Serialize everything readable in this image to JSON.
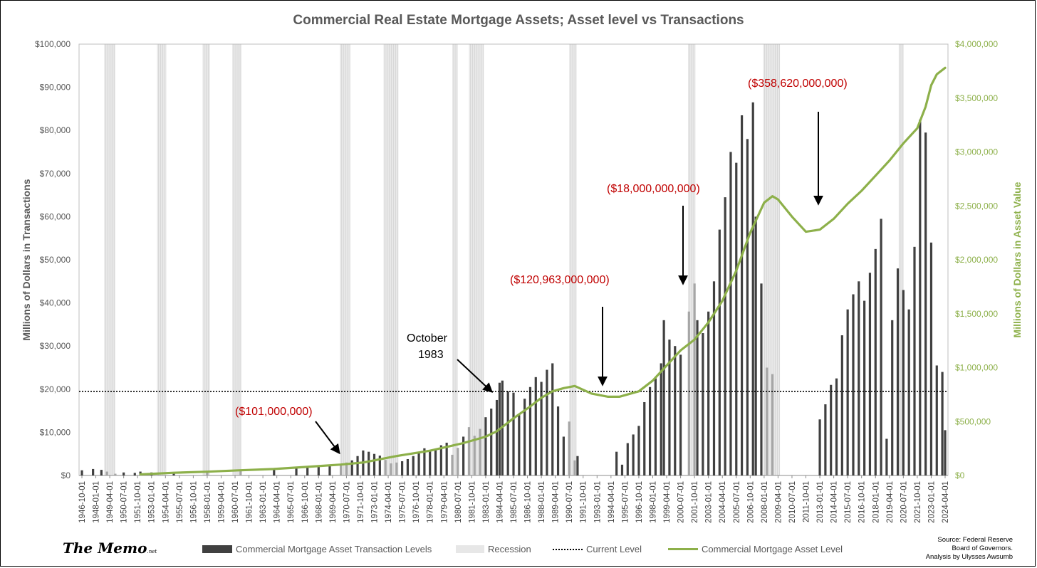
{
  "chart_data": {
    "type": "bar",
    "title": "Commercial Real Estate Mortgage Assets; Asset level vs Transactions",
    "ylabel_left": "Millions of Dollars in Transactions",
    "ylabel_right": "Millions of Dollars in Asset Value",
    "ylim_left": [
      0,
      100000
    ],
    "ylim_right": [
      0,
      4000000
    ],
    "yticks_left": [
      "$0",
      "$10,000",
      "$20,000",
      "$30,000",
      "$40,000",
      "$50,000",
      "$60,000",
      "$70,000",
      "$80,000",
      "$90,000",
      "$100,000"
    ],
    "yticks_right": [
      "$0",
      "$500,000",
      "$1,000,000",
      "$1,500,000",
      "$2,000,000",
      "$2,500,000",
      "$3,000,000",
      "$3,500,000",
      "$4,000,000"
    ],
    "x_start": "1946-10-01",
    "x_end": "2024-04-01",
    "xticks": [
      "1946-10-01",
      "1948-01-01",
      "1949-04-01",
      "1950-07-01",
      "1951-10-01",
      "1953-01-01",
      "1954-04-01",
      "1955-07-01",
      "1956-10-01",
      "1958-01-01",
      "1959-04-01",
      "1960-07-01",
      "1961-10-01",
      "1963-01-01",
      "1964-04-01",
      "1965-07-01",
      "1966-10-01",
      "1968-01-01",
      "1969-04-01",
      "1970-07-01",
      "1971-10-01",
      "1973-01-01",
      "1974-04-01",
      "1975-07-01",
      "1976-10-01",
      "1978-01-01",
      "1979-04-01",
      "1980-07-01",
      "1981-10-01",
      "1983-01-01",
      "1984-04-01",
      "1985-07-01",
      "1986-10-01",
      "1988-01-01",
      "1989-04-01",
      "1990-07-01",
      "1991-10-01",
      "1993-01-01",
      "1994-04-01",
      "1995-07-01",
      "1996-10-01",
      "1998-01-01",
      "1999-04-01",
      "2000-07-01",
      "2001-10-01",
      "2003-01-01",
      "2004-04-01",
      "2005-07-01",
      "2006-10-01",
      "2008-01-01",
      "2009-04-01",
      "2010-07-01",
      "2011-10-01",
      "2013-01-01",
      "2014-04-01",
      "2015-07-01",
      "2016-10-01",
      "2018-01-01",
      "2019-04-01",
      "2020-07-01",
      "2021-10-01",
      "2023-01-01",
      "2024-04-01"
    ],
    "recessions": [
      [
        "1948-10-01",
        "1949-10-01"
      ],
      [
        "1953-07-01",
        "1954-05-01"
      ],
      [
        "1957-08-01",
        "1958-04-01"
      ],
      [
        "1960-04-01",
        "1961-02-01"
      ],
      [
        "1969-12-01",
        "1970-11-01"
      ],
      [
        "1973-11-01",
        "1975-03-01"
      ],
      [
        "1980-01-01",
        "1980-07-01"
      ],
      [
        "1981-07-01",
        "1982-11-01"
      ],
      [
        "1990-07-01",
        "1991-03-01"
      ],
      [
        "2001-03-01",
        "2001-11-01"
      ],
      [
        "2007-12-01",
        "2009-06-01"
      ],
      [
        "2020-02-01",
        "2020-04-01"
      ]
    ],
    "current_level": 19500,
    "series": [
      {
        "name": "Commercial Mortgage Asset Transaction Levels",
        "type": "bar",
        "color": "#404040",
        "recession_color": "#a6a6a6",
        "x": [
          "1946-10-01",
          "1947-10-01",
          "1948-07-01",
          "1949-01-01",
          "1949-10-01",
          "1950-07-01",
          "1951-07-01",
          "1952-01-01",
          "1953-01-01",
          "1955-01-01",
          "1958-01-01",
          "1961-01-01",
          "1964-01-01",
          "1966-01-01",
          "1967-01-01",
          "1968-01-01",
          "1969-01-01",
          "1970-01-01",
          "1970-07-01",
          "1971-01-01",
          "1971-07-01",
          "1972-01-01",
          "1972-07-01",
          "1973-01-01",
          "1973-07-01",
          "1974-01-01",
          "1974-07-01",
          "1975-01-01",
          "1975-07-01",
          "1976-01-01",
          "1976-07-01",
          "1977-01-01",
          "1977-07-01",
          "1978-01-01",
          "1978-07-01",
          "1979-01-01",
          "1979-07-01",
          "1980-01-01",
          "1980-07-01",
          "1981-01-01",
          "1981-07-01",
          "1982-01-01",
          "1982-07-01",
          "1983-01-01",
          "1983-07-01",
          "1984-01-01",
          "1984-04-01",
          "1984-07-01",
          "1985-01-01",
          "1985-07-01",
          "1986-01-01",
          "1986-07-01",
          "1987-01-01",
          "1987-07-01",
          "1988-01-01",
          "1988-07-01",
          "1989-01-01",
          "1989-07-01",
          "1990-01-01",
          "1990-07-01",
          "1991-01-01",
          "1991-04-01",
          "1994-10-01",
          "1995-04-01",
          "1995-10-01",
          "1996-04-01",
          "1996-10-01",
          "1997-04-01",
          "1997-10-01",
          "1998-04-01",
          "1998-10-01",
          "1999-01-01",
          "1999-07-01",
          "2000-01-01",
          "2000-07-01",
          "2001-04-01",
          "2001-10-01",
          "2002-01-01",
          "2002-07-01",
          "2003-01-01",
          "2003-07-01",
          "2004-01-01",
          "2004-07-01",
          "2005-01-01",
          "2005-07-01",
          "2006-01-01",
          "2006-07-01",
          "2007-01-01",
          "2007-04-01",
          "2007-10-01",
          "2008-04-01",
          "2008-10-01",
          "2009-01-01",
          "2013-01-01",
          "2013-07-01",
          "2014-01-01",
          "2014-07-01",
          "2015-01-01",
          "2015-07-01",
          "2016-01-01",
          "2016-07-01",
          "2017-01-01",
          "2017-07-01",
          "2018-01-01",
          "2018-07-01",
          "2019-01-01",
          "2019-07-01",
          "2020-01-01",
          "2020-07-01",
          "2021-01-01",
          "2021-07-01",
          "2022-01-01",
          "2022-07-01",
          "2023-01-01",
          "2023-07-01",
          "2024-01-01",
          "2024-04-01"
        ],
        "values": [
          1200,
          1500,
          1300,
          900,
          400,
          700,
          600,
          900,
          700,
          800,
          900,
          1100,
          1400,
          1700,
          1900,
          2100,
          2300,
          2600,
          3000,
          3500,
          4500,
          5800,
          5500,
          5000,
          4600,
          3600,
          2800,
          3000,
          3300,
          3800,
          4500,
          5200,
          6300,
          5800,
          6200,
          7000,
          7600,
          4800,
          6400,
          9000,
          11200,
          9200,
          10800,
          13500,
          15500,
          17500,
          21500,
          22000,
          19500,
          19200,
          14000,
          17800,
          20500,
          22800,
          21700,
          24500,
          26000,
          16000,
          9000,
          12500,
          3500,
          4500,
          5500,
          2500,
          7500,
          9500,
          11500,
          17000,
          20500,
          22500,
          26000,
          36000,
          31500,
          30000,
          28000,
          38000,
          44500,
          36000,
          33000,
          38000,
          45000,
          57000,
          64500,
          75000,
          72500,
          83500,
          78000,
          86500,
          60000,
          44500,
          25000,
          23500,
          0,
          13000,
          16500,
          21000,
          22500,
          32500,
          38500,
          42000,
          45000,
          40500,
          47000,
          52500,
          59500,
          8500,
          36000,
          48000,
          43000,
          38500,
          53000,
          82500,
          79500,
          54000,
          25500,
          24000,
          10500
        ]
      },
      {
        "name": "Commercial Mortgage Asset Level",
        "type": "line",
        "color": "#8db04a",
        "axis": "right",
        "x": [
          "1952-01-01",
          "1955-01-01",
          "1958-01-01",
          "1961-01-01",
          "1964-01-01",
          "1967-01-01",
          "1970-01-01",
          "1972-01-01",
          "1975-01-01",
          "1978-01-01",
          "1981-01-01",
          "1983-01-01",
          "1984-01-01",
          "1985-07-01",
          "1987-01-01",
          "1988-01-01",
          "1989-01-01",
          "1990-01-01",
          "1991-01-01",
          "1992-07-01",
          "1994-01-01",
          "1995-01-01",
          "1996-10-01",
          "1998-01-01",
          "1999-04-01",
          "2000-07-01",
          "2001-10-01",
          "2003-01-01",
          "2004-04-01",
          "2005-07-01",
          "2006-10-01",
          "2008-01-01",
          "2008-10-01",
          "2009-04-01",
          "2010-07-01",
          "2011-10-01",
          "2013-01-01",
          "2014-04-01",
          "2015-07-01",
          "2016-10-01",
          "2018-01-01",
          "2019-04-01",
          "2020-07-01",
          "2021-10-01",
          "2022-07-01",
          "2023-01-01",
          "2023-07-01",
          "2024-04-01"
        ],
        "values": [
          10000,
          25000,
          35000,
          48000,
          60000,
          80000,
          101000,
          120000,
          180000,
          230000,
          300000,
          360000,
          410000,
          530000,
          640000,
          720000,
          780000,
          810000,
          830000,
          760000,
          730000,
          730000,
          780000,
          880000,
          1020000,
          1160000,
          1260000,
          1420000,
          1620000,
          1900000,
          2250000,
          2530000,
          2590000,
          2560000,
          2400000,
          2260000,
          2280000,
          2380000,
          2520000,
          2640000,
          2780000,
          2920000,
          3080000,
          3220000,
          3420000,
          3620000,
          3720000,
          3780000
        ]
      }
    ],
    "annotations": [
      {
        "text": "($101,000,000)",
        "at": "1969-04-01",
        "color": "#c00000"
      },
      {
        "text": "October",
        "color": "#000000"
      },
      {
        "text": "1983",
        "color": "#000000"
      },
      {
        "text": "($120,963,000,000)",
        "at": "1992-01-01",
        "color": "#c00000"
      },
      {
        "text": "($18,000,000,000)",
        "at": "2000-10-01",
        "color": "#c00000"
      },
      {
        "text": "($358,620,000,000)",
        "at": "2011-10-01",
        "color": "#c00000"
      }
    ],
    "legend": [
      {
        "label": "Commercial Mortgage Asset Transaction Levels"
      },
      {
        "label": "Recession"
      },
      {
        "label": "Current Level"
      },
      {
        "label": "Commercial Mortgage Asset Level"
      }
    ],
    "legend_position": "bottom"
  },
  "branding": {
    "name": "The Memo",
    "suffix": ".net"
  },
  "source_lines": [
    "Source: Federal Reserve",
    "Board of Governors.",
    "Analysis by Ulysses Awsumb"
  ]
}
